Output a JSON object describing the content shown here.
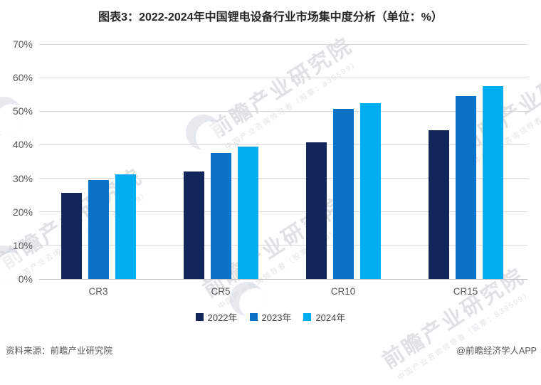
{
  "title": "图表3：2022-2024年中国锂电设备行业市场集中度分析（单位：%）",
  "chart_data": {
    "type": "bar",
    "categories": [
      "CR3",
      "CR5",
      "CR10",
      "CR15"
    ],
    "series": [
      {
        "name": "2022年",
        "color": "#12265c",
        "values": [
          25.6,
          32.0,
          40.7,
          44.4
        ]
      },
      {
        "name": "2023年",
        "color": "#0a72c4",
        "values": [
          29.5,
          37.6,
          50.8,
          54.6
        ]
      },
      {
        "name": "2024年",
        "color": "#00aeef",
        "values": [
          31.1,
          39.4,
          52.4,
          57.4
        ]
      }
    ],
    "title": "图表3：2022-2024年中国锂电设备行业市场集中度分析（单位：%）",
    "xlabel": "",
    "ylabel": "",
    "ylim": [
      0,
      70
    ],
    "y_tick_step": 10,
    "y_tick_labels": [
      "0%",
      "10%",
      "20%",
      "30%",
      "40%",
      "50%",
      "60%",
      "70%"
    ],
    "grid": "horizontal",
    "legend_position": "bottom"
  },
  "footer": {
    "source": "资料来源：前瞻产业研究院",
    "credit": "@前瞻经济学人APP"
  },
  "watermark": {
    "text": "前瞻产业研究院",
    "subtext": "中国产业咨询领导者（股票：839599）"
  }
}
